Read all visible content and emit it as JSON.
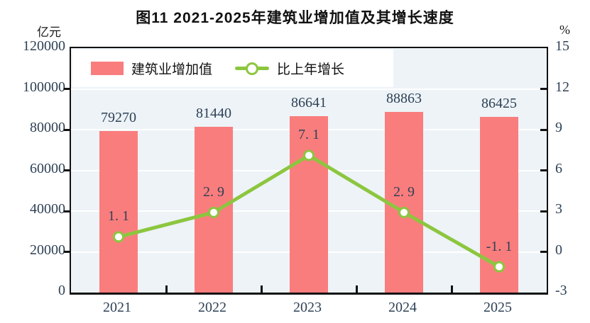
{
  "title": "图11  2021-2025年建筑业增加值及其增长速度",
  "left_axis": {
    "unit": "亿元",
    "ticks": [
      "120000",
      "100000",
      "80000",
      "60000",
      "40000",
      "20000",
      "0"
    ]
  },
  "right_axis": {
    "unit": "%",
    "ticks": [
      "15",
      "12",
      "9",
      "6",
      "3",
      "0",
      "-3"
    ]
  },
  "legend": [
    {
      "label": "建筑业增加值",
      "type": "bar"
    },
    {
      "label": "比上年增长",
      "type": "line"
    }
  ],
  "colors": {
    "bar": "#fa7d7d",
    "line": "#8cc63f",
    "marker_fill": "#ffffff",
    "plot_bg": "#edf3f7",
    "gridline": "#ffffff",
    "frame": "#111111",
    "number_text": "#2e4156",
    "title_text": "#111111"
  },
  "chart_data": {
    "type": "bar",
    "categories": [
      "2021",
      "2022",
      "2023",
      "2024",
      "2025"
    ],
    "series": [
      {
        "name": "建筑业增加值",
        "type": "bar",
        "axis": "left",
        "values": [
          79270,
          81440,
          86641,
          88863,
          86425
        ],
        "labels": [
          "79270",
          "81440",
          "86641",
          "88863",
          "86425"
        ]
      },
      {
        "name": "比上年增长",
        "type": "line",
        "axis": "right",
        "values": [
          1.1,
          2.9,
          7.1,
          2.9,
          -1.1
        ],
        "labels": [
          "1. 1",
          "2. 9",
          "7. 1",
          "2. 9",
          "-1. 1"
        ]
      }
    ],
    "title": "图11  2021-2025年建筑业增加值及其增长速度",
    "xlabel": "",
    "ylabel_left": "亿元",
    "ylabel_right": "%",
    "left_ylim": [
      0,
      120000
    ],
    "right_ylim": [
      -3,
      15
    ],
    "left_tick_step": 20000,
    "right_tick_step": 3,
    "grid": "horizontal-white-on-lightblue",
    "legend_position": "top-left-inside"
  }
}
